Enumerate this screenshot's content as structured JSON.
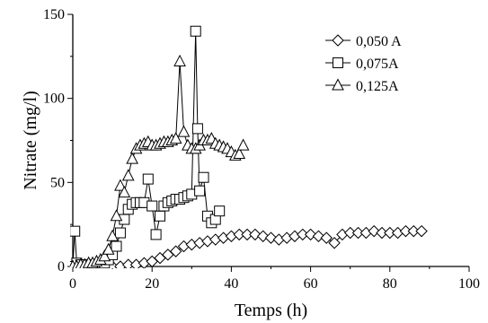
{
  "chart_data": {
    "type": "scatter",
    "xlabel": "Temps (h)",
    "ylabel": "Nitrate (mg/l)",
    "xlim": [
      0,
      100
    ],
    "ylim": [
      0,
      150
    ],
    "x_ticks": [
      "0",
      "20",
      "40",
      "60",
      "80",
      "100"
    ],
    "y_ticks": [
      "0",
      "50",
      "100",
      "150"
    ],
    "grid": false,
    "legend_position": "top-right",
    "series": [
      {
        "name": "0,050 A",
        "marker": "diamond",
        "points": [
          [
            0,
            0
          ],
          [
            2,
            0
          ],
          [
            4,
            0
          ],
          [
            6,
            0
          ],
          [
            8,
            0
          ],
          [
            10,
            0
          ],
          [
            12,
            0
          ],
          [
            14,
            1
          ],
          [
            16,
            1
          ],
          [
            18,
            2
          ],
          [
            20,
            3
          ],
          [
            22,
            5
          ],
          [
            24,
            7
          ],
          [
            26,
            9
          ],
          [
            28,
            12
          ],
          [
            30,
            13
          ],
          [
            32,
            14
          ],
          [
            34,
            15
          ],
          [
            36,
            16
          ],
          [
            38,
            17
          ],
          [
            40,
            18
          ],
          [
            42,
            19
          ],
          [
            44,
            19
          ],
          [
            46,
            19
          ],
          [
            48,
            18
          ],
          [
            50,
            17
          ],
          [
            52,
            16
          ],
          [
            54,
            17
          ],
          [
            56,
            18
          ],
          [
            58,
            19
          ],
          [
            60,
            19
          ],
          [
            62,
            18
          ],
          [
            64,
            17
          ],
          [
            66,
            14
          ],
          [
            68,
            19
          ],
          [
            70,
            20
          ],
          [
            72,
            20
          ],
          [
            74,
            20
          ],
          [
            76,
            21
          ],
          [
            78,
            20
          ],
          [
            80,
            20
          ],
          [
            82,
            20
          ],
          [
            84,
            21
          ],
          [
            86,
            21
          ],
          [
            88,
            21
          ]
        ]
      },
      {
        "name": "0,075A",
        "marker": "square",
        "points": [
          [
            0,
            0
          ],
          [
            0.5,
            21
          ],
          [
            1,
            2
          ],
          [
            2,
            1
          ],
          [
            3,
            1
          ],
          [
            4,
            1
          ],
          [
            5,
            1
          ],
          [
            6,
            1
          ],
          [
            7,
            2
          ],
          [
            8,
            2
          ],
          [
            9,
            4
          ],
          [
            10,
            7
          ],
          [
            11,
            12
          ],
          [
            12,
            20
          ],
          [
            13,
            28
          ],
          [
            14,
            34
          ],
          [
            15,
            37
          ],
          [
            16,
            38
          ],
          [
            17,
            38
          ],
          [
            18,
            38
          ],
          [
            19,
            52
          ],
          [
            20,
            36
          ],
          [
            21,
            19
          ],
          [
            22,
            30
          ],
          [
            23,
            36
          ],
          [
            24,
            38
          ],
          [
            25,
            39
          ],
          [
            26,
            40
          ],
          [
            27,
            40
          ],
          [
            28,
            41
          ],
          [
            29,
            42
          ],
          [
            30,
            43
          ],
          [
            31,
            140
          ],
          [
            31.5,
            82
          ],
          [
            32,
            45
          ],
          [
            33,
            53
          ],
          [
            34,
            30
          ],
          [
            35,
            26
          ],
          [
            36,
            28
          ],
          [
            37,
            33
          ]
        ]
      },
      {
        "name": "0,125A",
        "marker": "triangle",
        "points": [
          [
            0,
            0
          ],
          [
            1,
            0
          ],
          [
            2,
            1
          ],
          [
            3,
            1
          ],
          [
            4,
            2
          ],
          [
            5,
            2
          ],
          [
            6,
            3
          ],
          [
            7,
            4
          ],
          [
            8,
            6
          ],
          [
            9,
            10
          ],
          [
            10,
            18
          ],
          [
            11,
            30
          ],
          [
            12,
            48
          ],
          [
            13,
            44
          ],
          [
            14,
            54
          ],
          [
            15,
            64
          ],
          [
            16,
            70
          ],
          [
            17,
            72
          ],
          [
            18,
            73
          ],
          [
            19,
            74
          ],
          [
            20,
            72
          ],
          [
            21,
            72
          ],
          [
            22,
            73
          ],
          [
            23,
            74
          ],
          [
            24,
            74
          ],
          [
            25,
            75
          ],
          [
            26,
            76
          ],
          [
            27,
            122
          ],
          [
            28,
            80
          ],
          [
            29,
            72
          ],
          [
            30,
            70
          ],
          [
            31,
            70
          ],
          [
            32,
            72
          ],
          [
            33,
            75
          ],
          [
            34,
            75
          ],
          [
            35,
            76
          ],
          [
            36,
            73
          ],
          [
            37,
            72
          ],
          [
            38,
            71
          ],
          [
            39,
            70
          ],
          [
            40,
            68
          ],
          [
            41,
            66
          ],
          [
            42,
            67
          ],
          [
            43,
            72
          ]
        ]
      }
    ]
  }
}
